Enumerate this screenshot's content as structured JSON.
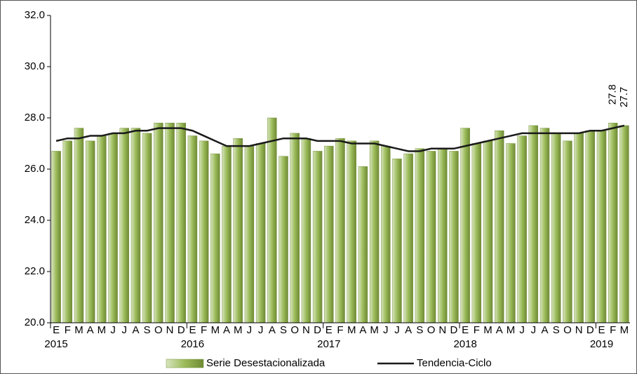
{
  "chart_data": {
    "type": "bar",
    "categories": [
      "E",
      "F",
      "M",
      "A",
      "M",
      "J",
      "J",
      "A",
      "S",
      "O",
      "N",
      "D",
      "E",
      "F",
      "M",
      "A",
      "M",
      "J",
      "J",
      "A",
      "S",
      "O",
      "N",
      "D",
      "E",
      "F",
      "M",
      "A",
      "M",
      "J",
      "J",
      "A",
      "S",
      "O",
      "N",
      "D",
      "E",
      "F",
      "M",
      "A",
      "M",
      "J",
      "J",
      "A",
      "S",
      "O",
      "N",
      "D",
      "E",
      "F",
      "M"
    ],
    "years": [
      "2015",
      "2016",
      "2017",
      "2018",
      "2019"
    ],
    "series": [
      {
        "name": "Serie Desestacionalizada",
        "type": "bar",
        "color": "#9bbb59",
        "values": [
          26.7,
          27.1,
          27.6,
          27.1,
          27.3,
          27.4,
          27.6,
          27.6,
          27.4,
          27.8,
          27.8,
          27.8,
          27.3,
          27.1,
          26.6,
          26.9,
          27.2,
          26.9,
          27.0,
          28.0,
          26.5,
          27.4,
          27.2,
          26.7,
          26.9,
          27.2,
          27.1,
          26.1,
          27.1,
          26.9,
          26.4,
          26.6,
          26.8,
          26.7,
          26.8,
          26.7,
          27.6,
          27.0,
          27.1,
          27.5,
          27.0,
          27.3,
          27.7,
          27.6,
          27.4,
          27.1,
          27.4,
          27.5,
          27.5,
          27.8,
          27.7
        ]
      },
      {
        "name": "Tendencia-Ciclo",
        "type": "line",
        "color": "#1a1a1a",
        "values": [
          27.1,
          27.2,
          27.2,
          27.3,
          27.3,
          27.4,
          27.4,
          27.5,
          27.5,
          27.6,
          27.6,
          27.6,
          27.5,
          27.3,
          27.1,
          26.9,
          26.9,
          26.9,
          27.0,
          27.1,
          27.2,
          27.2,
          27.2,
          27.1,
          27.1,
          27.1,
          27.0,
          27.0,
          27.0,
          26.9,
          26.8,
          26.7,
          26.7,
          26.8,
          26.8,
          26.8,
          26.9,
          27.0,
          27.1,
          27.2,
          27.3,
          27.4,
          27.4,
          27.4,
          27.4,
          27.4,
          27.4,
          27.5,
          27.5,
          27.6,
          27.7
        ]
      }
    ],
    "ylim": [
      20,
      32
    ],
    "yticks": [
      {
        "value": 20,
        "label": "20.0"
      },
      {
        "value": 22,
        "label": "22.0"
      },
      {
        "value": 24,
        "label": "24.0"
      },
      {
        "value": 26,
        "label": "26.0"
      },
      {
        "value": 28,
        "label": "28.0"
      },
      {
        "value": 30,
        "label": "30.0"
      },
      {
        "value": 32,
        "label": "32.0"
      }
    ],
    "grid": false,
    "legend": "bottom"
  }
}
